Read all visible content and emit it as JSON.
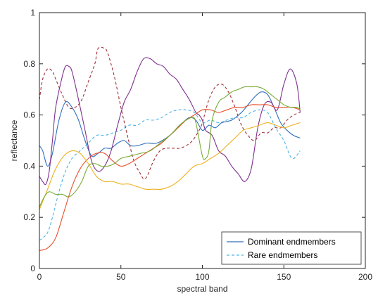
{
  "chart_data": {
    "type": "line",
    "title": "",
    "xlabel": "spectral band",
    "ylabel": "reflectance",
    "xlim": [
      0,
      200
    ],
    "ylim": [
      0,
      1
    ],
    "x_ticks": [
      0,
      50,
      100,
      150,
      200
    ],
    "y_ticks": [
      0,
      0.2,
      0.4,
      0.6,
      0.8,
      1
    ],
    "x_tick_labels": [
      "0",
      "50",
      "100",
      "150",
      "200"
    ],
    "y_tick_labels": [
      "0",
      "0.2",
      "0.4",
      "0.6",
      "0.8",
      "1"
    ],
    "grid": false,
    "legend": {
      "placement": "bottom-right",
      "entries": [
        {
          "label": "Dominant endmembers",
          "color": "#2f6fbf",
          "style": "solid"
        },
        {
          "label": "Rare endmembers",
          "color": "#4fb3e8",
          "style": "dashed"
        }
      ]
    },
    "series": [
      {
        "color": "#2f6fbf",
        "style": "solid",
        "x": [
          0,
          2,
          5,
          8,
          12,
          16,
          20,
          24,
          28,
          32,
          36,
          40,
          44,
          48,
          52,
          56,
          60,
          66,
          72,
          80,
          88,
          92,
          96,
          100,
          104,
          108,
          112,
          118,
          124,
          128,
          132,
          136,
          140,
          144,
          148,
          152,
          156,
          160
        ],
        "y": [
          0.48,
          0.46,
          0.4,
          0.45,
          0.58,
          0.65,
          0.63,
          0.58,
          0.5,
          0.44,
          0.45,
          0.47,
          0.47,
          0.49,
          0.5,
          0.48,
          0.48,
          0.49,
          0.49,
          0.52,
          0.57,
          0.59,
          0.58,
          0.54,
          0.56,
          0.55,
          0.57,
          0.58,
          0.61,
          0.64,
          0.67,
          0.69,
          0.68,
          0.63,
          0.57,
          0.54,
          0.52,
          0.51
        ]
      },
      {
        "color": "#4fb3e8",
        "style": "dashed",
        "x": [
          0,
          2,
          5,
          8,
          12,
          16,
          20,
          25,
          30,
          35,
          40,
          45,
          50,
          55,
          60,
          65,
          70,
          75,
          80,
          85,
          90,
          95,
          100,
          105,
          110,
          115,
          120,
          125,
          130,
          135,
          140,
          145,
          150,
          155,
          160
        ],
        "y": [
          0.11,
          0.12,
          0.14,
          0.2,
          0.3,
          0.38,
          0.43,
          0.46,
          0.49,
          0.52,
          0.52,
          0.53,
          0.54,
          0.56,
          0.56,
          0.58,
          0.58,
          0.59,
          0.61,
          0.62,
          0.62,
          0.61,
          0.57,
          0.58,
          0.57,
          0.58,
          0.59,
          0.59,
          0.61,
          0.62,
          0.61,
          0.55,
          0.5,
          0.43,
          0.46
        ]
      },
      {
        "color": "#7e2f8e",
        "style": "solid",
        "x": [
          0,
          2,
          4,
          6,
          8,
          10,
          14,
          16,
          18,
          20,
          24,
          28,
          32,
          36,
          40,
          44,
          48,
          52,
          56,
          60,
          64,
          68,
          72,
          76,
          80,
          84,
          88,
          92,
          96,
          98,
          100,
          102,
          106,
          110,
          114,
          118,
          122,
          126,
          130,
          134,
          138,
          142,
          146,
          150,
          154,
          158,
          160
        ],
        "y": [
          0.36,
          0.34,
          0.33,
          0.38,
          0.5,
          0.63,
          0.75,
          0.79,
          0.79,
          0.77,
          0.66,
          0.54,
          0.42,
          0.38,
          0.4,
          0.46,
          0.56,
          0.65,
          0.7,
          0.77,
          0.82,
          0.82,
          0.8,
          0.79,
          0.76,
          0.74,
          0.7,
          0.66,
          0.61,
          0.6,
          0.58,
          0.54,
          0.52,
          0.46,
          0.44,
          0.4,
          0.37,
          0.34,
          0.39,
          0.55,
          0.64,
          0.65,
          0.62,
          0.72,
          0.78,
          0.72,
          0.61
        ]
      },
      {
        "color": "#a0303a",
        "style": "dashed",
        "x": [
          0,
          2,
          5,
          8,
          10,
          14,
          18,
          22,
          26,
          30,
          34,
          36,
          40,
          42,
          46,
          50,
          54,
          58,
          62,
          64,
          66,
          70,
          74,
          78,
          82,
          86,
          90,
          94,
          98,
          100,
          104,
          108,
          112,
          116,
          120,
          124,
          128,
          132,
          136,
          140,
          144,
          148,
          152,
          156,
          160
        ],
        "y": [
          0.66,
          0.74,
          0.78,
          0.77,
          0.74,
          0.68,
          0.63,
          0.63,
          0.66,
          0.73,
          0.8,
          0.86,
          0.86,
          0.84,
          0.75,
          0.63,
          0.52,
          0.42,
          0.37,
          0.35,
          0.36,
          0.42,
          0.46,
          0.47,
          0.47,
          0.47,
          0.48,
          0.5,
          0.54,
          0.57,
          0.66,
          0.71,
          0.72,
          0.69,
          0.63,
          0.56,
          0.52,
          0.5,
          0.53,
          0.53,
          0.55,
          0.55,
          0.58,
          0.6,
          0.61
        ]
      },
      {
        "color": "#e8502b",
        "style": "solid",
        "x": [
          0,
          5,
          10,
          15,
          20,
          25,
          30,
          35,
          40,
          45,
          50,
          55,
          60,
          65,
          70,
          75,
          80,
          85,
          90,
          95,
          100,
          105,
          110,
          115,
          120,
          125,
          130,
          135,
          140,
          145,
          150,
          155,
          160
        ],
        "y": [
          0.07,
          0.08,
          0.12,
          0.22,
          0.32,
          0.39,
          0.43,
          0.45,
          0.45,
          0.42,
          0.4,
          0.41,
          0.43,
          0.45,
          0.47,
          0.49,
          0.52,
          0.55,
          0.58,
          0.6,
          0.62,
          0.62,
          0.61,
          0.62,
          0.63,
          0.63,
          0.64,
          0.64,
          0.64,
          0.63,
          0.63,
          0.63,
          0.62
        ]
      },
      {
        "color": "#edb120",
        "style": "solid",
        "x": [
          0,
          5,
          10,
          15,
          20,
          25,
          30,
          35,
          40,
          45,
          50,
          55,
          60,
          65,
          70,
          75,
          80,
          85,
          90,
          95,
          100,
          105,
          110,
          115,
          120,
          125,
          130,
          135,
          140,
          145,
          150,
          155,
          160
        ],
        "y": [
          0.23,
          0.31,
          0.39,
          0.44,
          0.46,
          0.45,
          0.41,
          0.36,
          0.34,
          0.34,
          0.33,
          0.33,
          0.32,
          0.31,
          0.31,
          0.31,
          0.32,
          0.34,
          0.37,
          0.4,
          0.41,
          0.43,
          0.45,
          0.48,
          0.51,
          0.54,
          0.55,
          0.56,
          0.57,
          0.56,
          0.55,
          0.56,
          0.57
        ]
      },
      {
        "color": "#77ac30",
        "style": "solid",
        "x": [
          0,
          3,
          6,
          10,
          14,
          18,
          22,
          26,
          30,
          34,
          38,
          42,
          46,
          50,
          56,
          62,
          68,
          74,
          80,
          86,
          90,
          94,
          96,
          100,
          102,
          104,
          106,
          110,
          114,
          118,
          122,
          126,
          130,
          134,
          138,
          142,
          146,
          150,
          154,
          158,
          160
        ],
        "y": [
          0.24,
          0.28,
          0.3,
          0.29,
          0.29,
          0.28,
          0.3,
          0.34,
          0.4,
          0.41,
          0.4,
          0.4,
          0.41,
          0.43,
          0.44,
          0.45,
          0.46,
          0.49,
          0.52,
          0.56,
          0.58,
          0.59,
          0.57,
          0.44,
          0.43,
          0.46,
          0.58,
          0.65,
          0.67,
          0.69,
          0.7,
          0.71,
          0.71,
          0.71,
          0.7,
          0.68,
          0.66,
          0.64,
          0.63,
          0.63,
          0.62
        ]
      }
    ]
  }
}
